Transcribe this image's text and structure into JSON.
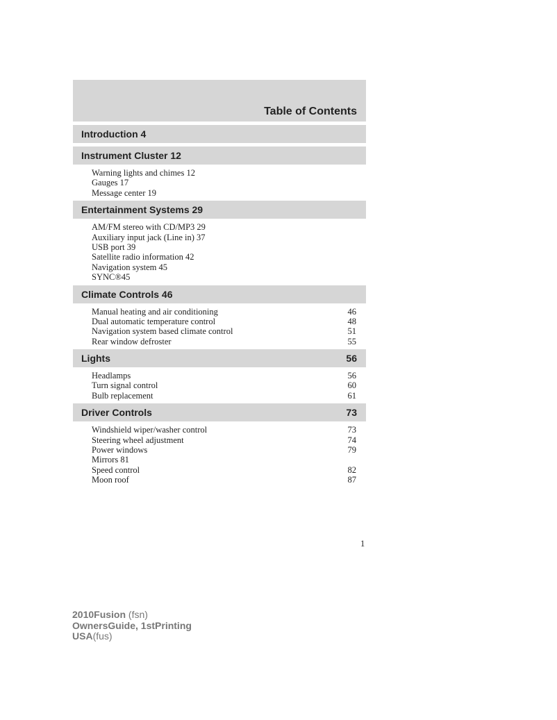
{
  "title": "Table of Contents",
  "sections": [
    {
      "label": "Introduction 4",
      "page": "",
      "items": []
    },
    {
      "label": "Instrument Cluster 12",
      "page": "",
      "items": [
        {
          "label": "Warning lights and chimes 12",
          "page": ""
        },
        {
          "label": "Gauges 17",
          "page": ""
        },
        {
          "label": "Message center 19",
          "page": ""
        }
      ]
    },
    {
      "label": "Entertainment Systems 29",
      "page": "",
      "items": [
        {
          "label": "AM/FM stereo with CD/MP3 29",
          "page": ""
        },
        {
          "label": "Auxiliary input jack (Line in) 37",
          "page": ""
        },
        {
          "label": "USB port 39",
          "page": ""
        },
        {
          "label": "Satellite radio information 42",
          "page": ""
        },
        {
          "label": "Navigation system 45",
          "page": ""
        },
        {
          "label": "SYNC®45",
          "page": ""
        }
      ]
    },
    {
      "label": "Climate Controls 46",
      "page": "",
      "items": [
        {
          "label": "Manual heating and air conditioning",
          "page": "46"
        },
        {
          "label": "Dual automatic temperature control",
          "page": "48"
        },
        {
          "label": "Navigation system based climate control",
          "page": "51"
        },
        {
          "label": "Rear window defroster",
          "page": "55"
        }
      ]
    },
    {
      "label": "Lights",
      "page": "56",
      "items": [
        {
          "label": "Headlamps",
          "page": "56"
        },
        {
          "label": "Turn signal control",
          "page": "60"
        },
        {
          "label": "Bulb replacement",
          "page": "61"
        }
      ]
    },
    {
      "label": "Driver Controls",
      "page": "73",
      "items": [
        {
          "label": "Windshield wiper/washer control",
          "page": "73"
        },
        {
          "label": "Steering wheel adjustment",
          "page": "74"
        },
        {
          "label": "Power windows",
          "page": "79"
        },
        {
          "label": "Mirrors 81",
          "page": ""
        },
        {
          "label": "Speed control",
          "page": "82"
        },
        {
          "label": "Moon roof",
          "page": "87"
        }
      ]
    }
  ],
  "page_number": "1",
  "footer": {
    "line1_bold": "2010Fusion",
    "line1_rest": " (fsn)",
    "line2_bold": "OwnersGuide, 1stPrinting",
    "line3_bold": "USA",
    "line3_rest": "(fus)"
  }
}
